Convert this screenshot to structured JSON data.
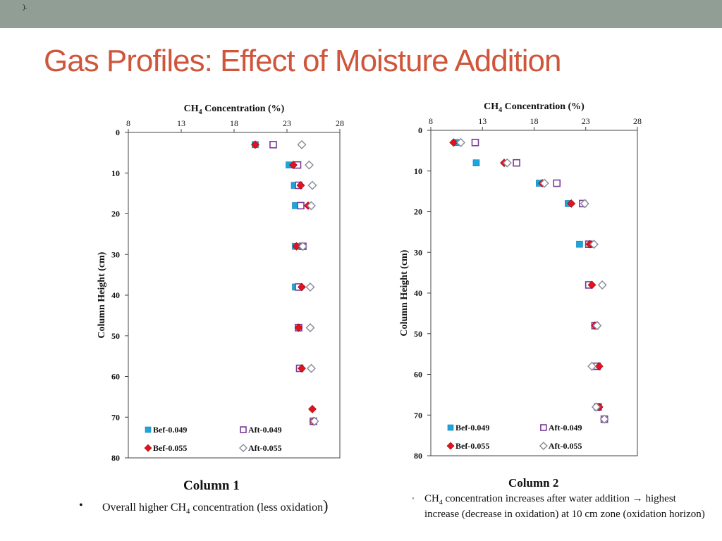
{
  "header": {
    "note": ")."
  },
  "slide": {
    "title": "Gas Profiles: Effect of Moisture Addition"
  },
  "colors": {
    "accent": "#d0563b",
    "topbar": "#909e96",
    "bef_049": "#1ba6dd",
    "aft_049": "#7a3a9a",
    "bef_055": "#e0141e",
    "aft_055": "#8a8a9a"
  },
  "captions": {
    "col1": "Column 1",
    "col2": "Column 2"
  },
  "bullets": {
    "b1": {
      "pre": "Overall higher CH",
      "sub": "4",
      "post": " concentration (less oxidation",
      "close": ")"
    },
    "b2": {
      "pre": "CH",
      "sub": "4",
      "post": " concentration increases after water addition → highest increase (decrease in oxidation) at 10 cm zone (oxidation horizon)"
    }
  },
  "chart_data": [
    {
      "type": "scatter",
      "title": "",
      "xlabel": "CH4 Concentration (%)",
      "ylabel": "Column Height (cm)",
      "x_axis_position": "top",
      "y_inverted": true,
      "xlim": [
        8,
        28
      ],
      "ylim": [
        0,
        80
      ],
      "xticks": [
        8,
        13,
        18,
        23,
        28
      ],
      "yticks": [
        0,
        10,
        20,
        30,
        40,
        50,
        60,
        70,
        80
      ],
      "grid": false,
      "legend_position": "bottom-inside",
      "series": [
        {
          "name": "Bef-0.049",
          "marker": "square-filled",
          "color": "#1ba6dd",
          "points": [
            [
              20.0,
              3
            ],
            [
              23.2,
              8
            ],
            [
              23.7,
              13
            ],
            [
              23.8,
              18
            ],
            [
              23.8,
              28
            ],
            [
              23.8,
              38
            ],
            [
              25.5,
              71
            ]
          ]
        },
        {
          "name": "Aft-0.049",
          "marker": "square-open",
          "color": "#7a3a9a",
          "points": [
            [
              21.7,
              3
            ],
            [
              24.0,
              8
            ],
            [
              24.1,
              13
            ],
            [
              24.3,
              18
            ],
            [
              24.5,
              28
            ],
            [
              24.1,
              38
            ],
            [
              24.1,
              48
            ],
            [
              24.2,
              58
            ],
            [
              25.5,
              71
            ]
          ]
        },
        {
          "name": "Bef-0.055",
          "marker": "diamond-filled",
          "color": "#e0141e",
          "points": [
            [
              20.0,
              3
            ],
            [
              23.6,
              8
            ],
            [
              24.3,
              13
            ],
            [
              25.0,
              18
            ],
            [
              23.9,
              28
            ],
            [
              24.4,
              38
            ],
            [
              24.1,
              48
            ],
            [
              24.4,
              58
            ],
            [
              25.4,
              68
            ],
            [
              25.5,
              71
            ]
          ]
        },
        {
          "name": "Aft-0.055",
          "marker": "diamond-open",
          "color": "#8a8a9a",
          "points": [
            [
              24.4,
              3
            ],
            [
              25.1,
              8
            ],
            [
              25.4,
              13
            ],
            [
              25.3,
              18
            ],
            [
              24.5,
              28
            ],
            [
              25.2,
              38
            ],
            [
              25.2,
              48
            ],
            [
              25.3,
              58
            ],
            [
              25.6,
              71
            ]
          ]
        }
      ]
    },
    {
      "type": "scatter",
      "title": "",
      "xlabel": "CH4 Concentration (%)",
      "ylabel": "Column Height (cm)",
      "x_axis_position": "top",
      "y_inverted": true,
      "xlim": [
        8,
        28
      ],
      "ylim": [
        0,
        80
      ],
      "xticks": [
        8,
        13,
        18,
        23,
        28
      ],
      "yticks": [
        0,
        10,
        20,
        30,
        40,
        50,
        60,
        70,
        80
      ],
      "grid": false,
      "legend_position": "bottom-inside",
      "series": [
        {
          "name": "Bef-0.049",
          "marker": "square-filled",
          "color": "#1ba6dd",
          "points": [
            [
              10.5,
              3
            ],
            [
              12.4,
              8
            ],
            [
              18.5,
              13
            ],
            [
              21.3,
              18
            ],
            [
              22.4,
              28
            ],
            [
              24.1,
              68
            ],
            [
              24.8,
              71
            ]
          ]
        },
        {
          "name": "Aft-0.049",
          "marker": "square-open",
          "color": "#7a3a9a",
          "points": [
            [
              12.3,
              3
            ],
            [
              16.3,
              8
            ],
            [
              20.2,
              13
            ],
            [
              22.7,
              18
            ],
            [
              23.3,
              28
            ],
            [
              23.3,
              38
            ],
            [
              23.9,
              48
            ],
            [
              24.1,
              58
            ],
            [
              24.2,
              68
            ],
            [
              24.8,
              71
            ]
          ]
        },
        {
          "name": "Bef-0.055",
          "marker": "diamond-filled",
          "color": "#e0141e",
          "points": [
            [
              10.2,
              3
            ],
            [
              15.1,
              8
            ],
            [
              18.8,
              13
            ],
            [
              21.6,
              18
            ],
            [
              23.4,
              28
            ],
            [
              23.6,
              38
            ],
            [
              23.9,
              48
            ],
            [
              24.3,
              58
            ],
            [
              24.3,
              68
            ],
            [
              24.8,
              71
            ]
          ]
        },
        {
          "name": "Aft-0.055",
          "marker": "diamond-open",
          "color": "#8a8a9a",
          "points": [
            [
              10.9,
              3
            ],
            [
              15.4,
              8
            ],
            [
              19.0,
              13
            ],
            [
              22.9,
              18
            ],
            [
              23.8,
              28
            ],
            [
              24.6,
              38
            ],
            [
              24.1,
              48
            ],
            [
              23.6,
              58
            ],
            [
              24.0,
              68
            ],
            [
              24.8,
              71
            ]
          ]
        }
      ]
    }
  ]
}
